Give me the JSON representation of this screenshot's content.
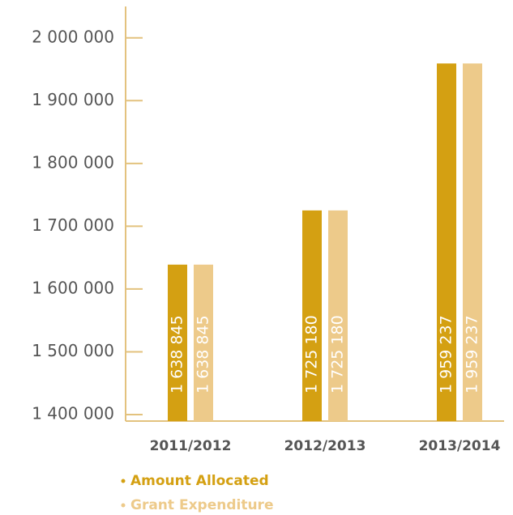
{
  "chart_data": {
    "type": "bar",
    "categories": [
      "2011/2012",
      "2012/2013",
      "2013/2014"
    ],
    "series": [
      {
        "name": "Amount Allocated",
        "color": "#d4a012",
        "values": [
          1638845,
          1725180,
          1959237
        ],
        "value_labels": [
          "1 638 845",
          "1 725 180",
          "1 959 237"
        ]
      },
      {
        "name": "Grant Expenditure",
        "color": "#edca8a",
        "values": [
          1638845,
          1725180,
          1959237
        ],
        "value_labels": [
          "1 638 845",
          "1 725 180",
          "1 959 237"
        ]
      }
    ],
    "ylim": [
      1400000,
      2050000
    ],
    "yticks": [
      {
        "value": 1400000,
        "label": "1 400 000"
      },
      {
        "value": 1500000,
        "label": "1 500 000"
      },
      {
        "value": 1600000,
        "label": "1 600 000"
      },
      {
        "value": 1700000,
        "label": "1 700 000"
      },
      {
        "value": 1800000,
        "label": "1 800 000"
      },
      {
        "value": 1900000,
        "label": "1 900 000"
      },
      {
        "value": 2000000,
        "label": "2 000 000"
      }
    ]
  }
}
